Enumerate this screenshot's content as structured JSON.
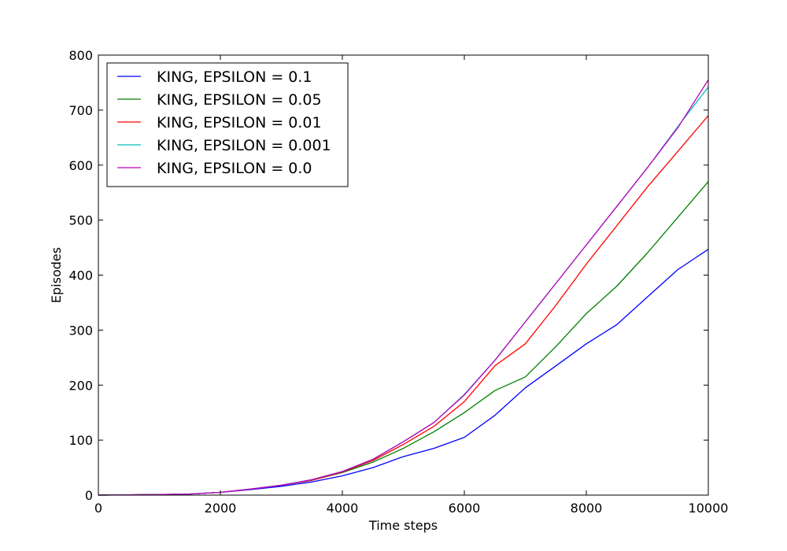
{
  "chart_data": {
    "type": "line",
    "title": "",
    "xlabel": "Time steps",
    "ylabel": "Episodes",
    "xlim": [
      0,
      10000
    ],
    "ylim": [
      0,
      800
    ],
    "xticks": [
      "0",
      "2000",
      "4000",
      "6000",
      "8000",
      "10000"
    ],
    "yticks": [
      "0",
      "100",
      "200",
      "300",
      "400",
      "500",
      "600",
      "700",
      "800"
    ],
    "grid": false,
    "legend_position": "top-left",
    "x": [
      0,
      1000,
      1500,
      2000,
      2500,
      3000,
      3500,
      4000,
      4500,
      5000,
      5500,
      6000,
      6500,
      7000,
      7500,
      8000,
      8500,
      9000,
      9500,
      10000
    ],
    "series": [
      {
        "name": "KING, EPSILON = 0.1",
        "color": "#0000ff",
        "values": [
          0,
          1,
          2,
          5,
          10,
          16,
          24,
          35,
          50,
          70,
          85,
          105,
          145,
          195,
          235,
          275,
          310,
          360,
          410,
          447
        ]
      },
      {
        "name": "KING, EPSILON = 0.05",
        "color": "#008000",
        "values": [
          0,
          1,
          2,
          5,
          11,
          18,
          27,
          41,
          60,
          85,
          115,
          150,
          190,
          215,
          270,
          330,
          380,
          440,
          505,
          570
        ]
      },
      {
        "name": "KING, EPSILON = 0.01",
        "color": "#ff0000",
        "values": [
          0,
          1,
          2,
          5,
          11,
          18,
          27,
          42,
          63,
          92,
          125,
          170,
          235,
          275,
          345,
          420,
          490,
          560,
          625,
          690
        ]
      },
      {
        "name": "KING, EPSILON = 0.001",
        "color": "#00bfbf",
        "values": [
          0,
          1,
          2,
          5,
          11,
          18,
          28,
          43,
          65,
          97,
          132,
          183,
          245,
          315,
          385,
          455,
          525,
          595,
          670,
          742
        ]
      },
      {
        "name": "KING, EPSILON = 0.0",
        "color": "#bf00bf",
        "values": [
          0,
          1,
          2,
          5,
          11,
          18,
          28,
          43,
          65,
          97,
          132,
          182,
          245,
          315,
          385,
          455,
          525,
          595,
          668,
          755
        ]
      }
    ]
  }
}
